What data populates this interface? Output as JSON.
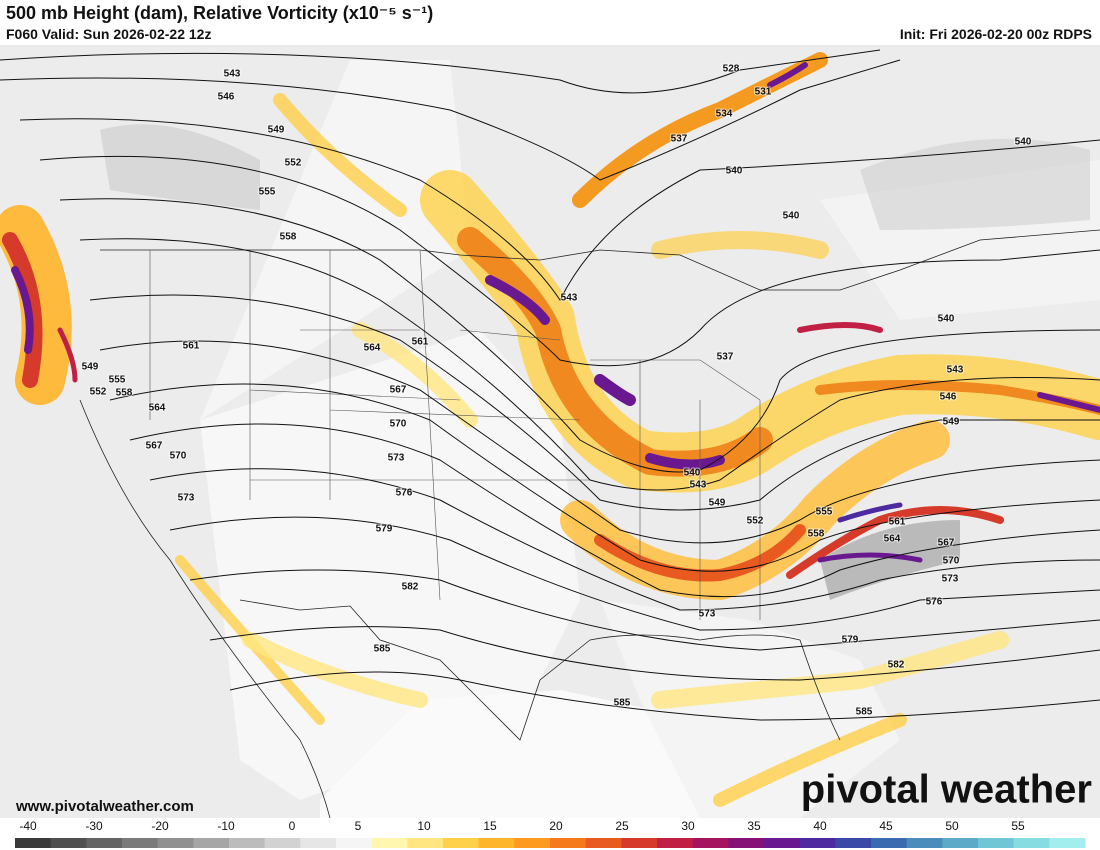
{
  "header": {
    "title": "500 mb Height (dam), Relative Vorticity (x10⁻⁵ s⁻¹)",
    "valid": "F060 Valid: Sun 2026-02-22 12z",
    "init": "Init: Fri 2026-02-20 00z RDPS"
  },
  "contour_labels": [
    543,
    546,
    549,
    552,
    555,
    558,
    561,
    564,
    561,
    567,
    570,
    573,
    576,
    579,
    582,
    585,
    585,
    585,
    582,
    579,
    576,
    573,
    570,
    567,
    564,
    561,
    558,
    555,
    552,
    549,
    543,
    540,
    537,
    543,
    540,
    540,
    540,
    540,
    543,
    546,
    549,
    528,
    531,
    534,
    537,
    573,
    549,
    552,
    555,
    558,
    564,
    567,
    570,
    573
  ],
  "watermark": "pivotal weather",
  "url": "www.pivotalweather.com",
  "colorbar": {
    "ticks": [
      -40,
      -30,
      -20,
      -10,
      0,
      5,
      10,
      15,
      20,
      25,
      30,
      35,
      40,
      45,
      50,
      55
    ],
    "colors": [
      "#3a3a3a",
      "#4f4f4f",
      "#646464",
      "#7a7a7a",
      "#909090",
      "#a6a6a6",
      "#bcbcbc",
      "#d2d2d2",
      "#e6e6e6",
      "#f5f5f5",
      "#fff7b0",
      "#ffe680",
      "#ffd04a",
      "#ffb52a",
      "#ff9a20",
      "#f57a1c",
      "#e85a20",
      "#d63a2a",
      "#c21f44",
      "#a5145e",
      "#861278",
      "#6a1890",
      "#4e2aa0",
      "#3a48a8",
      "#3a6ab0",
      "#4a8cbc",
      "#5caac8",
      "#70c6d4",
      "#86dce0",
      "#a2eeee"
    ]
  }
}
